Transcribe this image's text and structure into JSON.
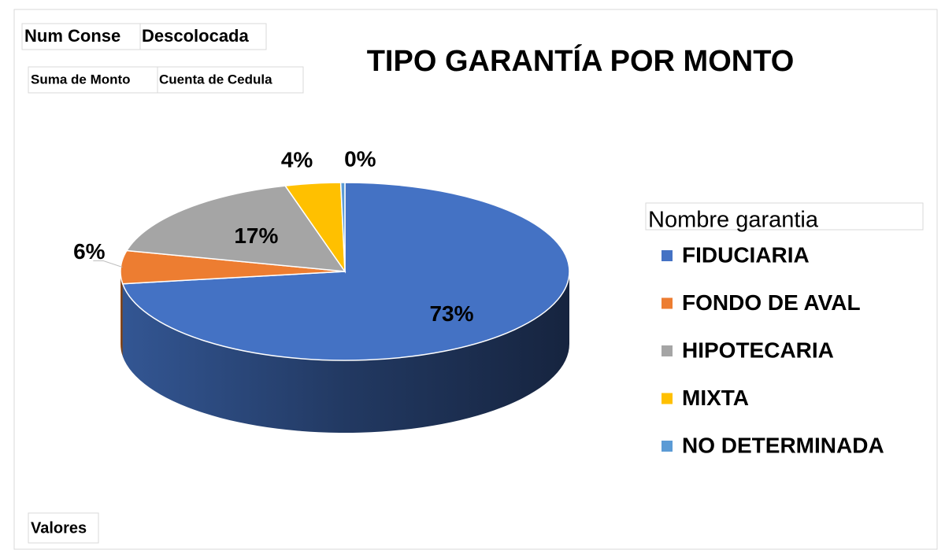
{
  "chart_data": {
    "type": "pie",
    "title": "TIPO GARANTÍA POR MONTO",
    "filter_buttons": [
      "Num Conse",
      "Descolocada"
    ],
    "value_buttons": [
      "Suma de Monto",
      "Cuenta de Cedula"
    ],
    "values_button": "Valores",
    "legend_title": "Nombre garantia",
    "legend": "right",
    "categories": [
      "FIDUCIARIA",
      "FONDO DE AVAL",
      "HIPOTECARIA",
      "MIXTA",
      "NO DETERMINADA"
    ],
    "values": [
      73,
      6,
      17,
      4,
      0.3
    ],
    "value_labels": [
      "73%",
      "6%",
      "17%",
      "4%",
      "0%"
    ],
    "colors": [
      "#4472c4",
      "#ed7d31",
      "#a5a5a5",
      "#ffc000",
      "#5b9bd5"
    ]
  }
}
